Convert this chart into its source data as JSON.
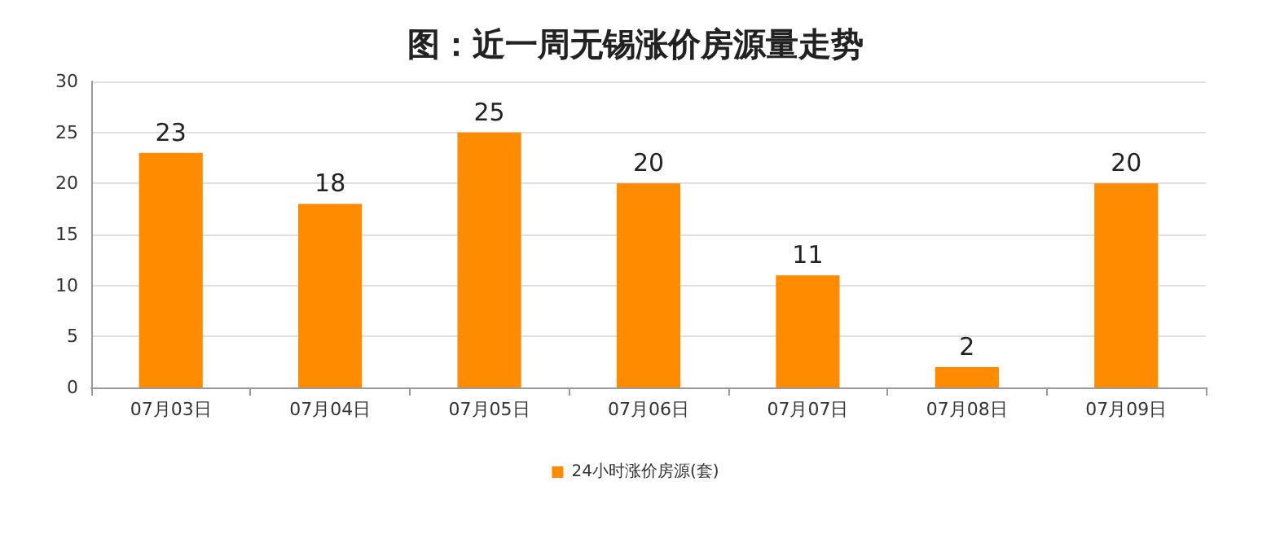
{
  "chart_data": {
    "type": "bar",
    "title": "图：近一周无锡涨价房源量走势",
    "categories": [
      "07月03日",
      "07月04日",
      "07月05日",
      "07月06日",
      "07月07日",
      "07月08日",
      "07月09日"
    ],
    "series": [
      {
        "name": "24小时涨价房源(套)",
        "color": "#ff8c00",
        "values": [
          23,
          18,
          25,
          20,
          11,
          2,
          20
        ]
      }
    ],
    "ylim": [
      0,
      30
    ],
    "yticks": [
      0,
      5,
      10,
      15,
      20,
      25,
      30
    ],
    "grid": "y",
    "legend": "bottom",
    "data_labels": true
  }
}
